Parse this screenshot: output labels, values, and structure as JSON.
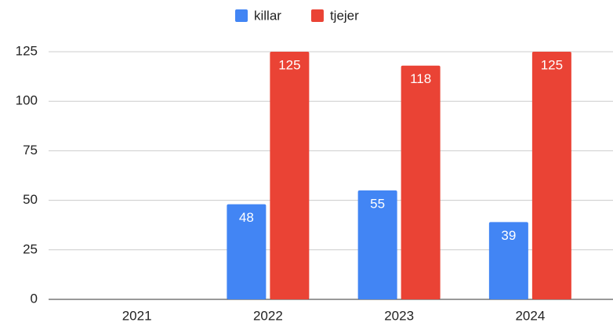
{
  "chart_data": {
    "type": "bar",
    "categories": [
      "2021",
      "2022",
      "2023",
      "2024"
    ],
    "series": [
      {
        "name": "killar",
        "color": "#4285f4",
        "values": [
          null,
          48,
          55,
          39
        ]
      },
      {
        "name": "tjejer",
        "color": "#ea4335",
        "values": [
          null,
          125,
          118,
          125
        ]
      }
    ],
    "ylim": [
      0,
      125
    ],
    "yticks": [
      0,
      25,
      50,
      75,
      100,
      125
    ],
    "grid": true,
    "legend": "top"
  }
}
